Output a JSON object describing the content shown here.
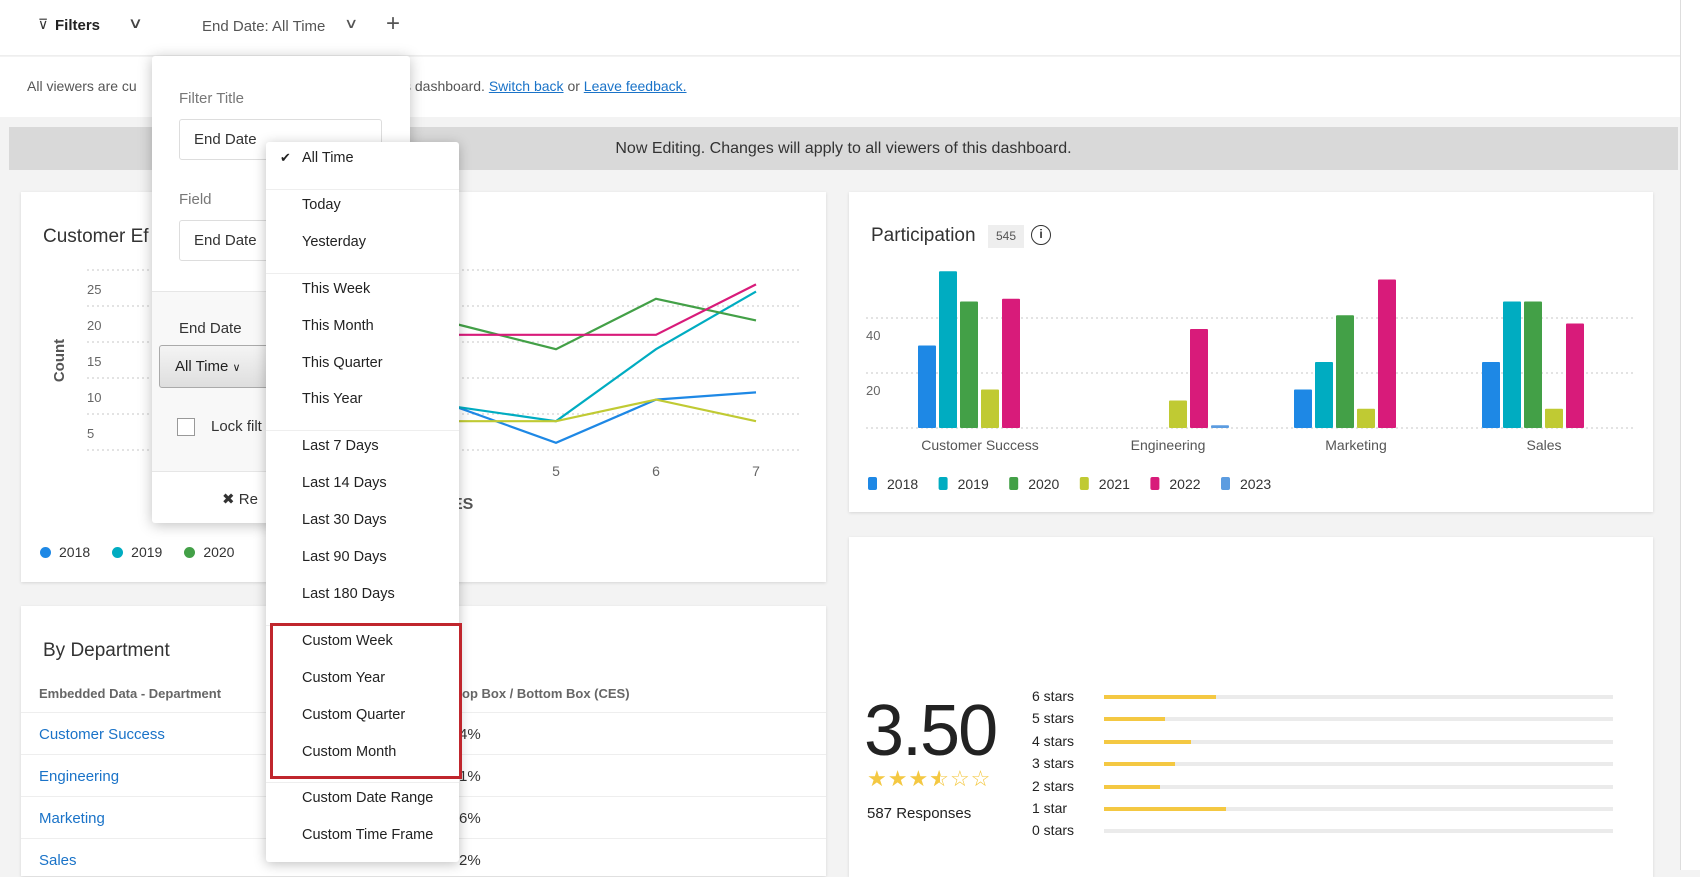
{
  "topbar": {
    "filters_label": "Filters",
    "filter_chip": "End Date: All Time",
    "add": "+"
  },
  "info": {
    "prefix": "All viewers are cu",
    "suffix": "s dashboard.",
    "switch_back": "Switch back",
    "or": "or",
    "feedback": "Leave feedback."
  },
  "edit_banner": "Now Editing. Changes will apply to all viewers of this dashboard.",
  "line_card": {
    "title": "Customer Ef",
    "ylabel": "Count",
    "xlabel_fragment": "ES",
    "legend": [
      "2018",
      "2019",
      "2020"
    ]
  },
  "popover": {
    "filter_title_label": "Filter Title",
    "filter_title_value": "End Date",
    "field_label": "Field",
    "field_value": "End Date",
    "end_date_label": "End Date",
    "select_value": "All Time",
    "lock_label": "Lock filt",
    "remove_label": "Re"
  },
  "dropdown": {
    "selected": "All Time",
    "groups": [
      [
        "All Time"
      ],
      [
        "Today",
        "Yesterday"
      ],
      [
        "This Week",
        "This Month",
        "This Quarter",
        "This Year"
      ],
      [
        "Last 7 Days",
        "Last 14 Days",
        "Last 30 Days",
        "Last 90 Days",
        "Last 180 Days"
      ],
      [
        "Custom Week",
        "Custom Year",
        "Custom Quarter",
        "Custom Month"
      ],
      [
        "Custom Date Range",
        "Custom Time Frame"
      ]
    ]
  },
  "table": {
    "title": "By Department",
    "col1": "Embedded Data - Department",
    "col2_fragment": "op Box / Bottom Box (CES)",
    "rows": [
      {
        "dept": "Customer Success",
        "pct": "4%"
      },
      {
        "dept": "Engineering",
        "pct": "1%"
      },
      {
        "dept": "Marketing",
        "pct": "6%"
      },
      {
        "dept": "Sales",
        "pct": "2%"
      }
    ]
  },
  "participation": {
    "title": "Participation",
    "badge": "545"
  },
  "rating": {
    "score": "3.50",
    "stars": 3.5,
    "responses": "587 Responses",
    "rows": [
      {
        "label": "6 stars",
        "fraction": 0.22
      },
      {
        "label": "5 stars",
        "fraction": 0.12
      },
      {
        "label": "4 stars",
        "fraction": 0.17
      },
      {
        "label": "3 stars",
        "fraction": 0.14
      },
      {
        "label": "2 stars",
        "fraction": 0.11
      },
      {
        "label": "1 star",
        "fraction": 0.24
      },
      {
        "label": "0 stars",
        "fraction": 0
      }
    ]
  },
  "colors": {
    "2018": "#1e88e5",
    "2019": "#00acc1",
    "2020": "#43a047",
    "2021": "#c0ca33",
    "2022": "#d81b7a",
    "2023": "#5c9ce0",
    "highlight": "#c0262d",
    "link": "#1a73c8"
  },
  "chart_data": [
    {
      "type": "line",
      "ylabel": "Count",
      "ylim": [
        0,
        25
      ],
      "yticks": [
        5,
        10,
        15,
        20,
        25
      ],
      "x": [
        4,
        5,
        6,
        7
      ],
      "xticks": [
        "5",
        "6",
        "7"
      ],
      "series": [
        {
          "name": "2018",
          "values": [
            6,
            1,
            7,
            8
          ]
        },
        {
          "name": "2019",
          "values": [
            6,
            4,
            14,
            22
          ]
        },
        {
          "name": "2020",
          "values": [
            17.5,
            14,
            21,
            18
          ]
        },
        {
          "name": "2021",
          "values": [
            4,
            4,
            7,
            4
          ]
        },
        {
          "name": "2022",
          "values": [
            16,
            16,
            16,
            23
          ]
        }
      ]
    },
    {
      "type": "bar",
      "categories": [
        "Customer Success",
        "Engineering",
        "Marketing",
        "Sales"
      ],
      "ylim": [
        0,
        60
      ],
      "yticks": [
        20,
        40
      ],
      "series": [
        {
          "name": "2018",
          "values": [
            30,
            0,
            14,
            24
          ]
        },
        {
          "name": "2019",
          "values": [
            57,
            0,
            24,
            46
          ]
        },
        {
          "name": "2020",
          "values": [
            46,
            0,
            41,
            46
          ]
        },
        {
          "name": "2021",
          "values": [
            14,
            10,
            7,
            7
          ]
        },
        {
          "name": "2022",
          "values": [
            47,
            36,
            54,
            38
          ]
        },
        {
          "name": "2023",
          "values": [
            0,
            1,
            0,
            0
          ]
        }
      ]
    }
  ]
}
